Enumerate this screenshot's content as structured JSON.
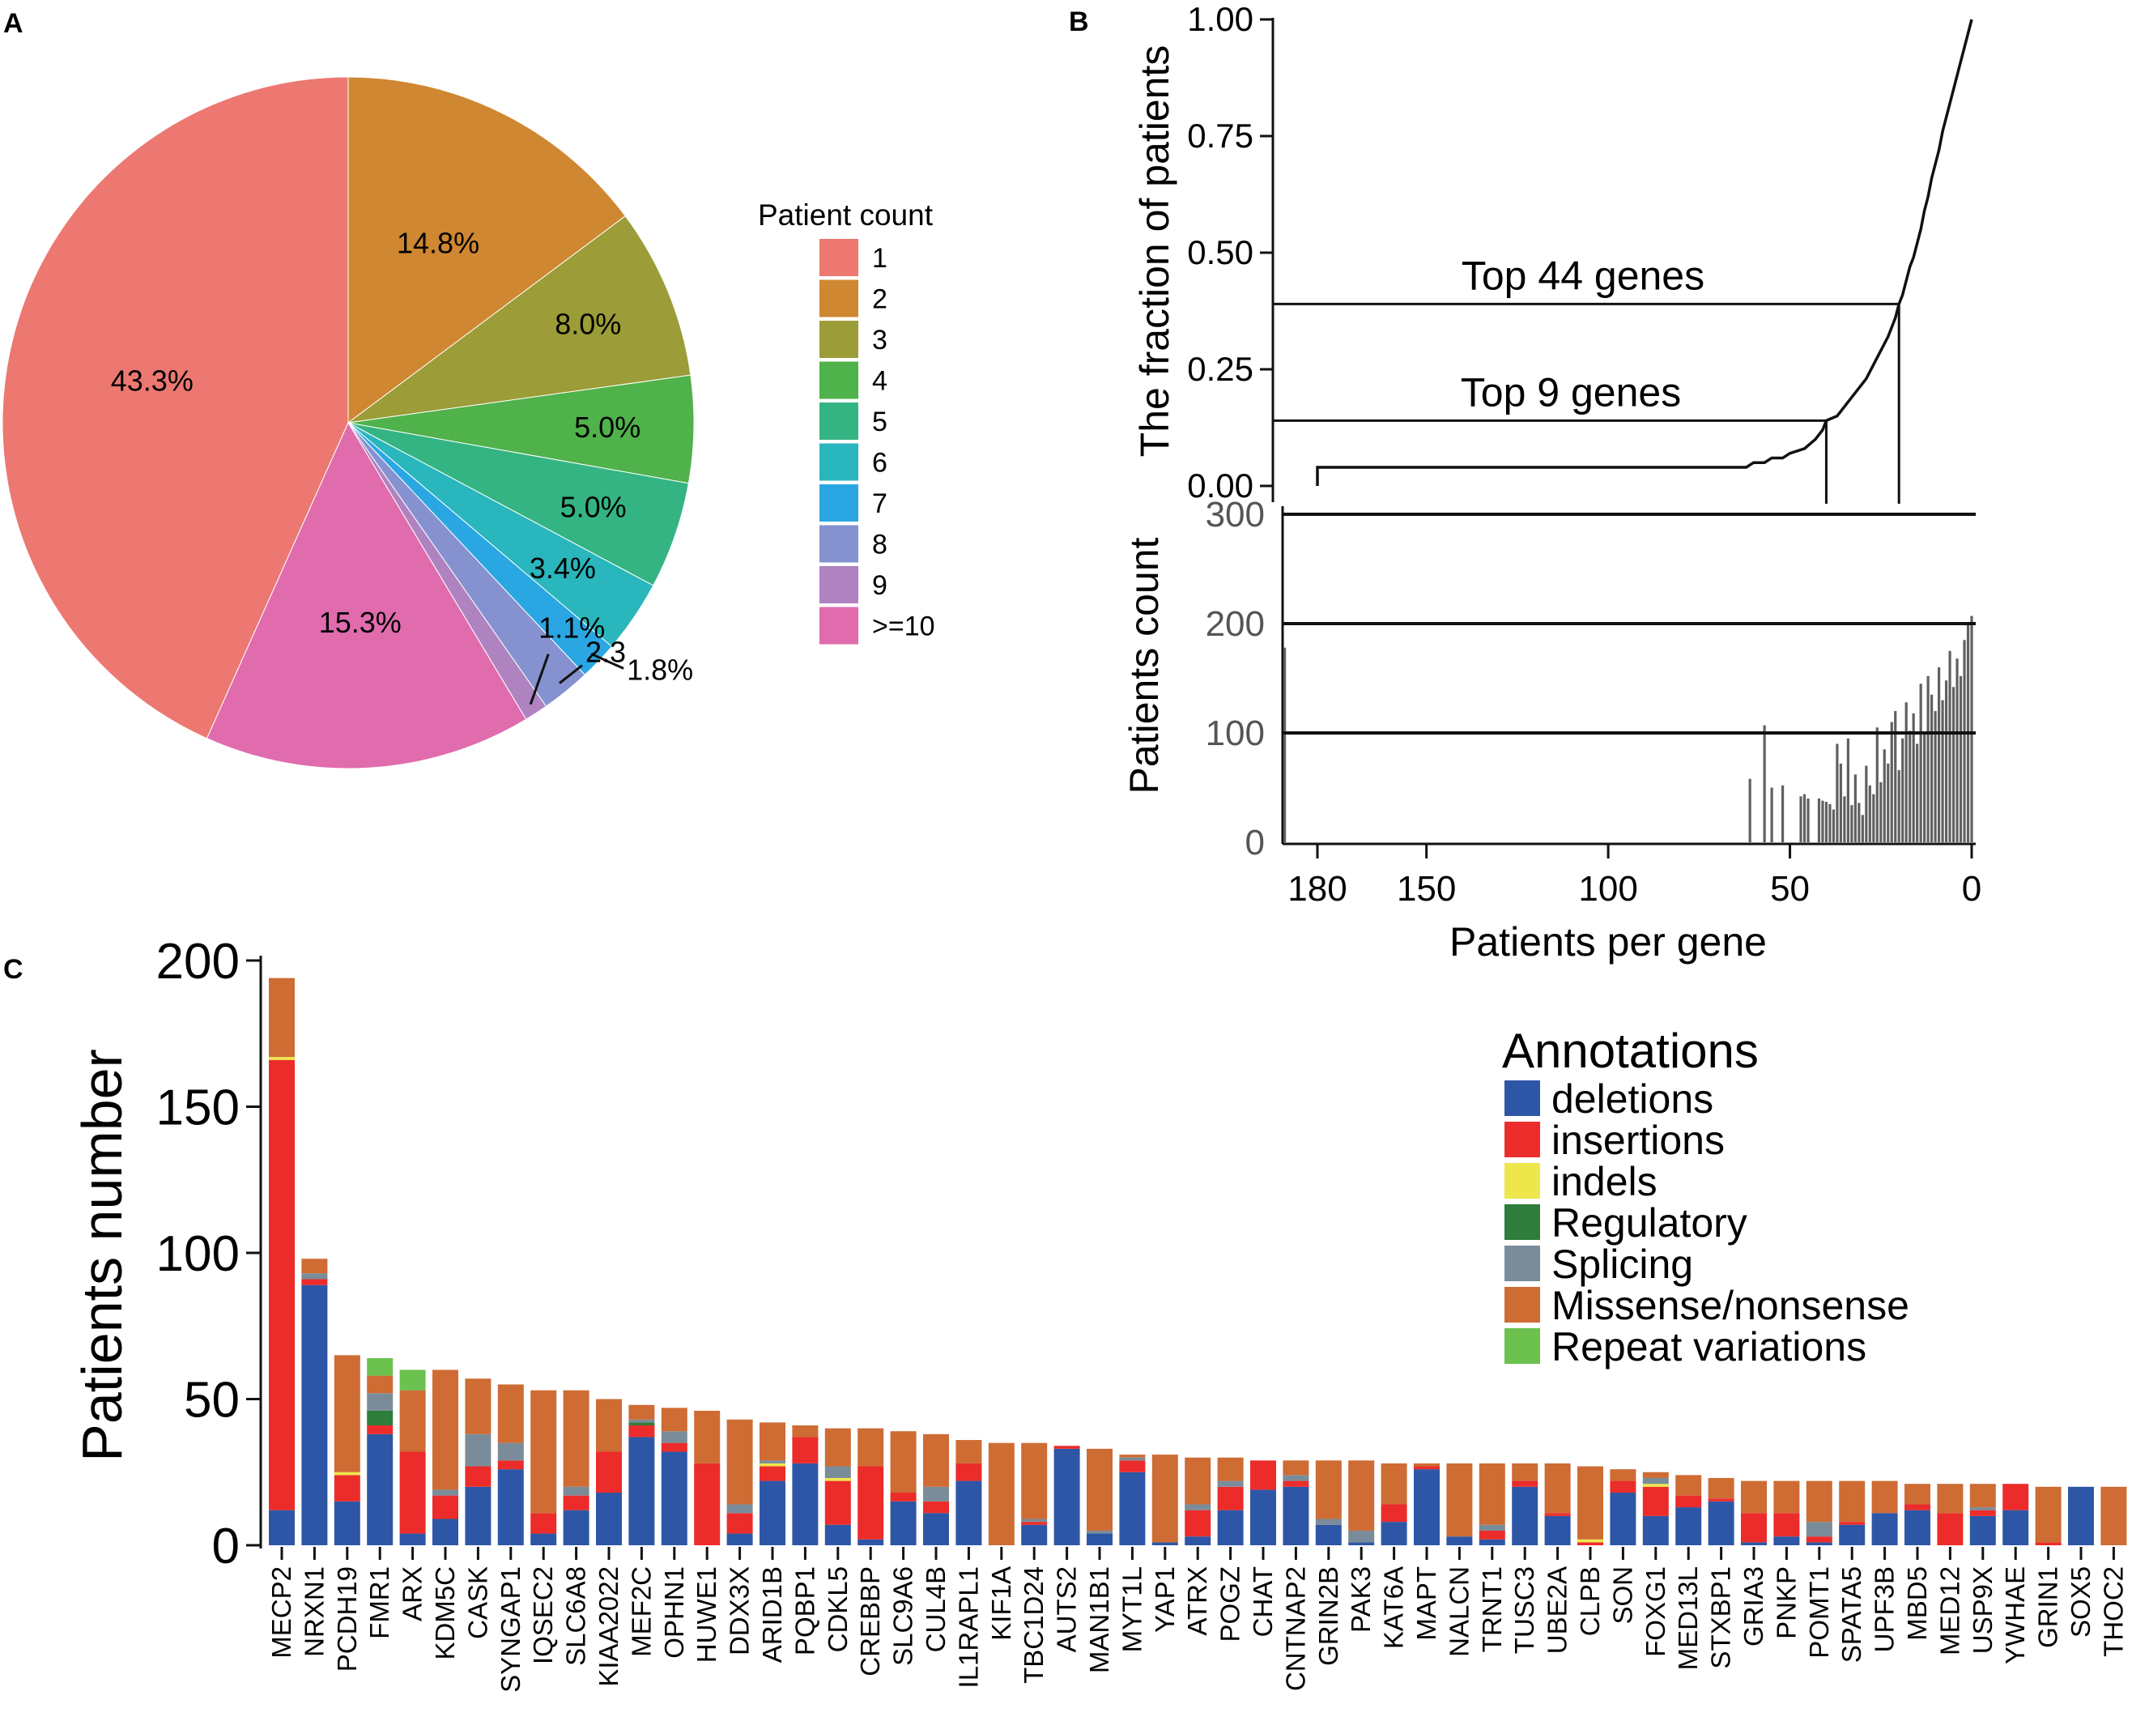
{
  "panels": {
    "a": "A",
    "b": "B",
    "c": "C"
  },
  "chart_data": [
    {
      "type": "pie",
      "panel": "A",
      "legend_title": "Patient count",
      "legend_position": "right",
      "slices": [
        {
          "name": "1",
          "value": 43.3,
          "label": "43.3%",
          "color": "#EC7871"
        },
        {
          "name": "2",
          "value": 14.8,
          "label": "14.8%",
          "color": "#CF8731"
        },
        {
          "name": "3",
          "value": 8.0,
          "label": "8.0%",
          "color": "#9C9C38"
        },
        {
          "name": "4",
          "value": 5.0,
          "label": "5.0%",
          "color": "#4FB24A"
        },
        {
          "name": "5",
          "value": 5.0,
          "label": "5.0%",
          "color": "#35B483"
        },
        {
          "name": "6",
          "value": 3.4,
          "label": "3.4%",
          "color": "#29B6BC"
        },
        {
          "name": "7",
          "value": 1.8,
          "label": "1.8%",
          "color": "#2AA7E2"
        },
        {
          "name": "8",
          "value": 2.3,
          "label": "2.3",
          "color": "#8592CF"
        },
        {
          "name": "9",
          "value": 1.1,
          "label": "1.1%",
          "color": "#AF82C0"
        },
        {
          "name": ">=10",
          "value": 15.3,
          "label": "15.3%",
          "color": "#E06CAE"
        }
      ]
    },
    {
      "type": "line",
      "panel": "B-top",
      "subtype": "step (cumulative)",
      "ylabel": "The fraction of patients",
      "yticks": [
        "0.00",
        "0.25",
        "0.50",
        "0.75",
        "1.00"
      ],
      "ylim": [
        0,
        1
      ],
      "xlim": [
        190,
        0
      ],
      "x_direction": "reversed",
      "points": [
        [
          180,
          0.0
        ],
        [
          180,
          0.04
        ],
        [
          62,
          0.04
        ],
        [
          60,
          0.05
        ],
        [
          57,
          0.05
        ],
        [
          55,
          0.06
        ],
        [
          52,
          0.06
        ],
        [
          50,
          0.07
        ],
        [
          46,
          0.08
        ],
        [
          43,
          0.1
        ],
        [
          41,
          0.12
        ],
        [
          40,
          0.14
        ],
        [
          37,
          0.15
        ],
        [
          35,
          0.17
        ],
        [
          33,
          0.19
        ],
        [
          31,
          0.21
        ],
        [
          29,
          0.23
        ],
        [
          27,
          0.26
        ],
        [
          25,
          0.29
        ],
        [
          23,
          0.32
        ],
        [
          21,
          0.36
        ],
        [
          20,
          0.39
        ],
        [
          19,
          0.41
        ],
        [
          18,
          0.44
        ],
        [
          17,
          0.47
        ],
        [
          16,
          0.49
        ],
        [
          15,
          0.52
        ],
        [
          14,
          0.55
        ],
        [
          13,
          0.59
        ],
        [
          12,
          0.62
        ],
        [
          11,
          0.66
        ],
        [
          10,
          0.69
        ],
        [
          9,
          0.72
        ],
        [
          8,
          0.76
        ],
        [
          7,
          0.79
        ],
        [
          6,
          0.82
        ],
        [
          5,
          0.85
        ],
        [
          4,
          0.88
        ],
        [
          3,
          0.91
        ],
        [
          2,
          0.94
        ],
        [
          1,
          0.97
        ],
        [
          0,
          1.0
        ]
      ],
      "annotations": [
        {
          "text": "Top 44 genes",
          "y": 0.39,
          "x_drop": 20
        },
        {
          "text": "Top 9 genes",
          "y": 0.14,
          "x_drop": 40
        }
      ]
    },
    {
      "type": "bar",
      "panel": "B-bottom",
      "ylabel": "Patients count",
      "xlabel": "Patients per gene",
      "yticks": [
        "0",
        "100",
        "200",
        "300"
      ],
      "xticks": [
        "180",
        "150",
        "100",
        "50",
        "0"
      ],
      "ylim": [
        0,
        300
      ],
      "xlim": [
        190,
        0
      ],
      "hlines": [
        100,
        200,
        300
      ],
      "bars": [
        {
          "x": 189,
          "value": 178
        },
        {
          "x": 61,
          "value": 58
        },
        {
          "x": 57,
          "value": 107
        },
        {
          "x": 55,
          "value": 50
        },
        {
          "x": 52,
          "value": 52
        },
        {
          "x": 47,
          "value": 42
        },
        {
          "x": 46,
          "value": 44
        },
        {
          "x": 45,
          "value": 40
        },
        {
          "x": 42,
          "value": 40
        },
        {
          "x": 41,
          "value": 38
        },
        {
          "x": 40,
          "value": 37
        },
        {
          "x": 39,
          "value": 35
        },
        {
          "x": 38,
          "value": 30
        },
        {
          "x": 37,
          "value": 90
        },
        {
          "x": 36,
          "value": 72
        },
        {
          "x": 35,
          "value": 42
        },
        {
          "x": 34,
          "value": 95
        },
        {
          "x": 33,
          "value": 34
        },
        {
          "x": 32,
          "value": 62
        },
        {
          "x": 31,
          "value": 36
        },
        {
          "x": 30,
          "value": 25
        },
        {
          "x": 29,
          "value": 70
        },
        {
          "x": 28,
          "value": 52
        },
        {
          "x": 27,
          "value": 44
        },
        {
          "x": 26,
          "value": 105
        },
        {
          "x": 25,
          "value": 55
        },
        {
          "x": 24,
          "value": 85
        },
        {
          "x": 23,
          "value": 72
        },
        {
          "x": 22,
          "value": 110
        },
        {
          "x": 21,
          "value": 120
        },
        {
          "x": 20,
          "value": 66
        },
        {
          "x": 19,
          "value": 95
        },
        {
          "x": 18,
          "value": 128
        },
        {
          "x": 17,
          "value": 102
        },
        {
          "x": 16,
          "value": 118
        },
        {
          "x": 15,
          "value": 90
        },
        {
          "x": 14,
          "value": 145
        },
        {
          "x": 13,
          "value": 100
        },
        {
          "x": 12,
          "value": 152
        },
        {
          "x": 11,
          "value": 135
        },
        {
          "x": 10,
          "value": 120
        },
        {
          "x": 9,
          "value": 160
        },
        {
          "x": 8,
          "value": 130
        },
        {
          "x": 7,
          "value": 148
        },
        {
          "x": 6,
          "value": 175
        },
        {
          "x": 5,
          "value": 142
        },
        {
          "x": 4,
          "value": 168
        },
        {
          "x": 3,
          "value": 152
        },
        {
          "x": 2,
          "value": 185
        },
        {
          "x": 1,
          "value": 200
        },
        {
          "x": 0,
          "value": 207
        }
      ]
    },
    {
      "type": "bar",
      "panel": "C",
      "subtype": "stacked",
      "ylabel": "Patients number",
      "yticks": [
        "0",
        "50",
        "100",
        "150",
        "200"
      ],
      "ylim": [
        0,
        200
      ],
      "legend_title": "Annotations",
      "legend_position": "top-right",
      "series": [
        {
          "name": "deletions",
          "color": "#2E56A6"
        },
        {
          "name": "insertions",
          "color": "#EC2C2A"
        },
        {
          "name": "indels",
          "color": "#EDE74B"
        },
        {
          "name": "Regulatory",
          "color": "#2E7D3A"
        },
        {
          "name": "Splicing",
          "color": "#7A8C99"
        },
        {
          "name": "Missense/nonsense",
          "color": "#CE6C34"
        },
        {
          "name": "Repeat variations",
          "color": "#6DC14F"
        }
      ],
      "categories": [
        "MECP2",
        "NRXN1",
        "PCDH19",
        "FMR1",
        "ARX",
        "KDM5C",
        "CASK",
        "SYNGAP1",
        "IQSEC2",
        "SLC6A8",
        "KIAA2022",
        "MEF2C",
        "OPHN1",
        "HUWE1",
        "DDX3X",
        "ARID1B",
        "PQBP1",
        "CDKL5",
        "CREBBP",
        "SLC9A6",
        "CUL4B",
        "IL1RAPL1",
        "KIF1A",
        "TBC1D24",
        "AUTS2",
        "MAN1B1",
        "MYT1L",
        "YAP1",
        "ATRX",
        "POGZ",
        "CHAT",
        "CNTNAP2",
        "GRIN2B",
        "PAK3",
        "KAT6A",
        "MAPT",
        "NALCN",
        "TRNT1",
        "TUSC3",
        "UBE2A",
        "CLPB",
        "SON",
        "FOXG1",
        "MED13L",
        "STXBP1",
        "GRIA3",
        "PNKP",
        "POMT1",
        "SPATA5",
        "UPF3B",
        "MBD5",
        "MED12",
        "USP9X",
        "YWHAE",
        "GRIN1",
        "SOX5",
        "THOC2"
      ],
      "stacks": [
        [
          12,
          154,
          1,
          0,
          0,
          27,
          0
        ],
        [
          89,
          2,
          0,
          0,
          2,
          5,
          0
        ],
        [
          15,
          9,
          1,
          0,
          0,
          40,
          0
        ],
        [
          38,
          3,
          0,
          5,
          6,
          6,
          6
        ],
        [
          4,
          28,
          0,
          0,
          0,
          21,
          7
        ],
        [
          9,
          8,
          0,
          0,
          2,
          41,
          0
        ],
        [
          20,
          7,
          0,
          0,
          11,
          19,
          0
        ],
        [
          26,
          3,
          0,
          0,
          6,
          20,
          0
        ],
        [
          4,
          7,
          0,
          0,
          0,
          42,
          0
        ],
        [
          12,
          5,
          0,
          0,
          3,
          33,
          0
        ],
        [
          18,
          14,
          0,
          0,
          0,
          18,
          0
        ],
        [
          37,
          4,
          0,
          1,
          1,
          5,
          0
        ],
        [
          32,
          3,
          0,
          0,
          4,
          8,
          0
        ],
        [
          0,
          28,
          0,
          0,
          0,
          18,
          0
        ],
        [
          4,
          7,
          0,
          0,
          3,
          29,
          0
        ],
        [
          22,
          5,
          1,
          0,
          1,
          13,
          0
        ],
        [
          28,
          9,
          0,
          0,
          0,
          4,
          0
        ],
        [
          7,
          15,
          1,
          0,
          4,
          13,
          0
        ],
        [
          2,
          25,
          0,
          0,
          0,
          13,
          0
        ],
        [
          15,
          3,
          0,
          0,
          0,
          21,
          0
        ],
        [
          11,
          4,
          0,
          0,
          5,
          18,
          0
        ],
        [
          22,
          6,
          0,
          0,
          0,
          8,
          0
        ],
        [
          0,
          0,
          0,
          0,
          0,
          35,
          0
        ],
        [
          7,
          1,
          0,
          0,
          1,
          26,
          0
        ],
        [
          33,
          1,
          0,
          0,
          0,
          0,
          0
        ],
        [
          4,
          0,
          0,
          0,
          1,
          28,
          0
        ],
        [
          25,
          4,
          0,
          0,
          1,
          1,
          0
        ],
        [
          1,
          0,
          0,
          0,
          0,
          30,
          0
        ],
        [
          3,
          9,
          0,
          0,
          2,
          16,
          0
        ],
        [
          12,
          8,
          0,
          0,
          2,
          8,
          0
        ],
        [
          19,
          10,
          0,
          0,
          0,
          0,
          0
        ],
        [
          20,
          2,
          0,
          0,
          2,
          5,
          0
        ],
        [
          7,
          0,
          0,
          0,
          2,
          20,
          0
        ],
        [
          1,
          0,
          0,
          0,
          4,
          24,
          0
        ],
        [
          8,
          6,
          0,
          0,
          0,
          14,
          0
        ],
        [
          26,
          1,
          0,
          0,
          0,
          1,
          0
        ],
        [
          3,
          0,
          0,
          0,
          0,
          25,
          0
        ],
        [
          2,
          3,
          0,
          0,
          2,
          21,
          0
        ],
        [
          20,
          2,
          0,
          0,
          0,
          6,
          0
        ],
        [
          10,
          1,
          0,
          0,
          0,
          17,
          0
        ],
        [
          0,
          1,
          1,
          0,
          0,
          25,
          0
        ],
        [
          18,
          4,
          0,
          0,
          0,
          4,
          0
        ],
        [
          10,
          10,
          1,
          0,
          2,
          2,
          0
        ],
        [
          13,
          4,
          0,
          0,
          0,
          7,
          0
        ],
        [
          15,
          1,
          0,
          0,
          0,
          7,
          0
        ],
        [
          1,
          10,
          0,
          0,
          0,
          11,
          0
        ],
        [
          3,
          8,
          0,
          0,
          0,
          11,
          0
        ],
        [
          1,
          2,
          0,
          0,
          5,
          14,
          0
        ],
        [
          7,
          1,
          0,
          0,
          0,
          14,
          0
        ],
        [
          11,
          0,
          0,
          0,
          0,
          11,
          0
        ],
        [
          12,
          2,
          0,
          0,
          0,
          7,
          0
        ],
        [
          0,
          11,
          0,
          0,
          0,
          10,
          0
        ],
        [
          10,
          2,
          0,
          0,
          1,
          8,
          0
        ],
        [
          12,
          9,
          0,
          0,
          0,
          0,
          0
        ],
        [
          0,
          1,
          0,
          0,
          0,
          19,
          0
        ],
        [
          20,
          0,
          0,
          0,
          0,
          0,
          0
        ],
        [
          0,
          0,
          0,
          0,
          0,
          20,
          0
        ]
      ]
    }
  ]
}
